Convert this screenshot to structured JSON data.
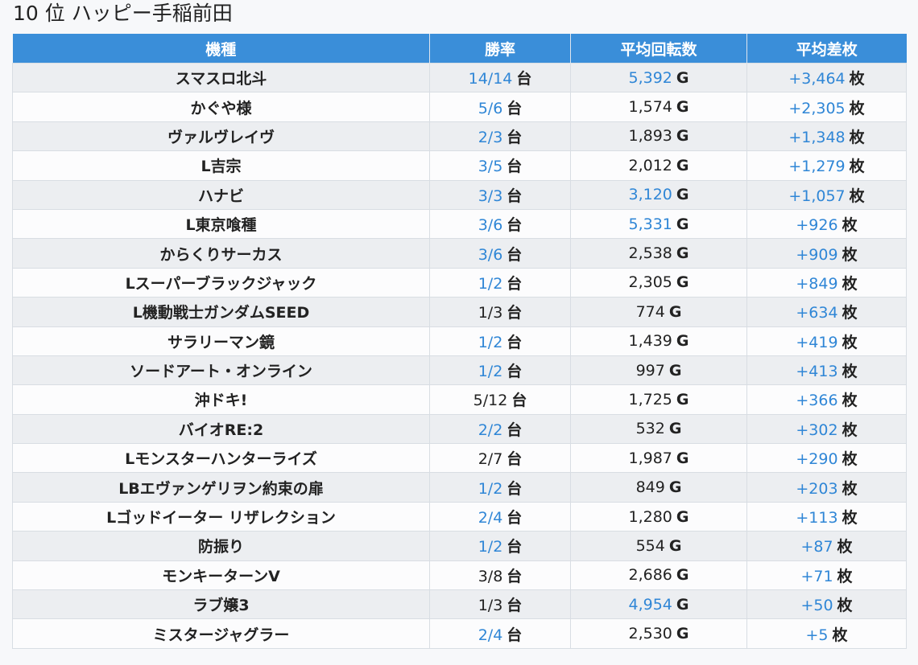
{
  "page": {
    "title": "10 位 ハッピー手稲前田"
  },
  "table": {
    "headers": [
      "機種",
      "勝率",
      "平均回転数",
      "平均差枚"
    ],
    "units": {
      "win": "台",
      "spins": "G",
      "diff": "枚"
    },
    "colors": {
      "header_bg": "#3a8ed9",
      "highlight": "#2f86d6"
    },
    "rows": [
      {
        "name": "スマスロ北斗",
        "win": "14/14",
        "win_hl": true,
        "spins": "5,392",
        "spins_hl": true,
        "diff": "+3,464"
      },
      {
        "name": "かぐや様",
        "win": "5/6",
        "win_hl": true,
        "spins": "1,574",
        "spins_hl": false,
        "diff": "+2,305"
      },
      {
        "name": "ヴァルヴレイヴ",
        "win": "2/3",
        "win_hl": true,
        "spins": "1,893",
        "spins_hl": false,
        "diff": "+1,348"
      },
      {
        "name": "L吉宗",
        "win": "3/5",
        "win_hl": true,
        "spins": "2,012",
        "spins_hl": false,
        "diff": "+1,279"
      },
      {
        "name": "ハナビ",
        "win": "3/3",
        "win_hl": true,
        "spins": "3,120",
        "spins_hl": true,
        "diff": "+1,057"
      },
      {
        "name": "L東京喰種",
        "win": "3/6",
        "win_hl": true,
        "spins": "5,331",
        "spins_hl": true,
        "diff": "+926"
      },
      {
        "name": "からくりサーカス",
        "win": "3/6",
        "win_hl": true,
        "spins": "2,538",
        "spins_hl": false,
        "diff": "+909"
      },
      {
        "name": "Lスーパーブラックジャック",
        "win": "1/2",
        "win_hl": true,
        "spins": "2,305",
        "spins_hl": false,
        "diff": "+849"
      },
      {
        "name": "L機動戦士ガンダムSEED",
        "win": "1/3",
        "win_hl": false,
        "spins": "774",
        "spins_hl": false,
        "diff": "+634"
      },
      {
        "name": "サラリーマン鏡",
        "win": "1/2",
        "win_hl": true,
        "spins": "1,439",
        "spins_hl": false,
        "diff": "+419"
      },
      {
        "name": "ソードアート・オンライン",
        "win": "1/2",
        "win_hl": true,
        "spins": "997",
        "spins_hl": false,
        "diff": "+413"
      },
      {
        "name": "沖ドキ!",
        "win": "5/12",
        "win_hl": false,
        "spins": "1,725",
        "spins_hl": false,
        "diff": "+366"
      },
      {
        "name": "バイオRE:2",
        "win": "2/2",
        "win_hl": true,
        "spins": "532",
        "spins_hl": false,
        "diff": "+302"
      },
      {
        "name": "Lモンスターハンターライズ",
        "win": "2/7",
        "win_hl": false,
        "spins": "1,987",
        "spins_hl": false,
        "diff": "+290"
      },
      {
        "name": "LBエヴァンゲリヲン約束の扉",
        "win": "1/2",
        "win_hl": true,
        "spins": "849",
        "spins_hl": false,
        "diff": "+203"
      },
      {
        "name": "Lゴッドイーター リザレクション",
        "win": "2/4",
        "win_hl": true,
        "spins": "1,280",
        "spins_hl": false,
        "diff": "+113"
      },
      {
        "name": "防振り",
        "win": "1/2",
        "win_hl": true,
        "spins": "554",
        "spins_hl": false,
        "diff": "+87"
      },
      {
        "name": "モンキーターンV",
        "win": "3/8",
        "win_hl": false,
        "spins": "2,686",
        "spins_hl": false,
        "diff": "+71"
      },
      {
        "name": "ラブ嬢3",
        "win": "1/3",
        "win_hl": false,
        "spins": "4,954",
        "spins_hl": true,
        "diff": "+50"
      },
      {
        "name": "ミスタージャグラー",
        "win": "2/4",
        "win_hl": true,
        "spins": "2,530",
        "spins_hl": false,
        "diff": "+5"
      }
    ]
  }
}
